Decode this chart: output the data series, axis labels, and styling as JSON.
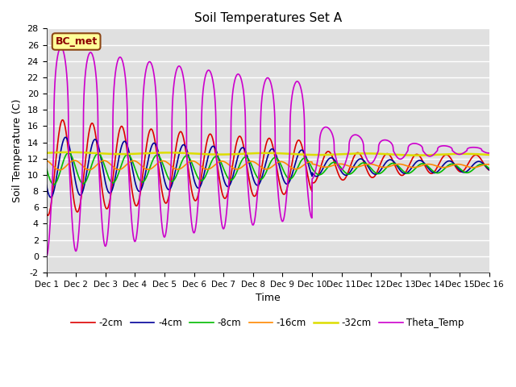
{
  "title": "Soil Temperatures Set A",
  "xlabel": "Time",
  "ylabel": "Soil Temperature (C)",
  "ylim": [
    -2,
    28
  ],
  "xlim": [
    0,
    15
  ],
  "xtick_labels": [
    "Dec 1",
    "Dec 2",
    "Dec 3",
    "Dec 4",
    "Dec 5",
    "Dec 6",
    "Dec 7",
    "Dec 8",
    "Dec 9",
    "Dec 10",
    "Dec 11",
    "Dec 12",
    "Dec 13",
    "Dec 14",
    "Dec 15",
    "Dec 16"
  ],
  "bg_color": "#e0e0e0",
  "annotation_text": "BC_met",
  "annotation_bg": "#ffff99",
  "annotation_border": "#8b4513",
  "lines": [
    {
      "label": "-2cm",
      "color": "#dd0000",
      "lw": 1.2
    },
    {
      "label": "-4cm",
      "color": "#000099",
      "lw": 1.2
    },
    {
      "label": "-8cm",
      "color": "#00bb00",
      "lw": 1.2
    },
    {
      "label": "-16cm",
      "color": "#ff8800",
      "lw": 1.2
    },
    {
      "label": "-32cm",
      "color": "#dddd00",
      "lw": 1.8
    },
    {
      "label": "Theta_Temp",
      "color": "#cc00cc",
      "lw": 1.2
    }
  ],
  "title_fontsize": 11
}
